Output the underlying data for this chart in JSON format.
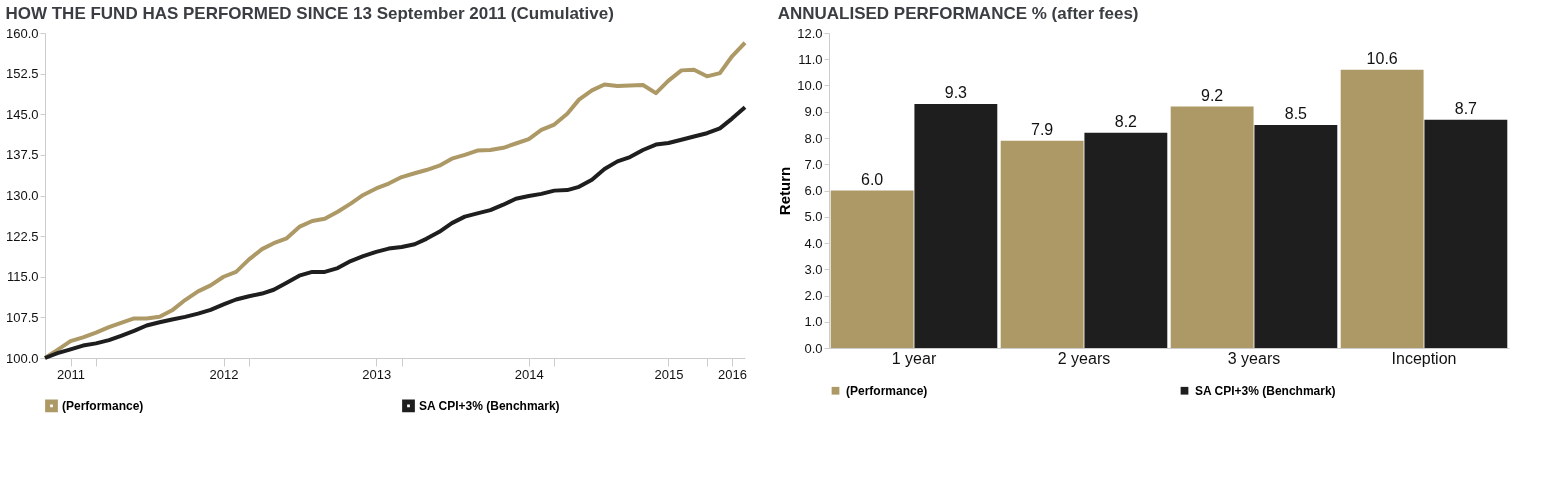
{
  "chart_data": [
    {
      "type": "line",
      "title": "HOW THE FUND HAS PERFORMED SINCE 13 September 2011 (Cumulative)",
      "x": [
        "2011-09",
        "2011-10",
        "2011-11",
        "2011-12",
        "2012-01",
        "2012-02",
        "2012-03",
        "2012-04",
        "2012-05",
        "2012-06",
        "2012-07",
        "2012-08",
        "2012-09",
        "2012-10",
        "2012-11",
        "2012-12",
        "2013-01",
        "2013-02",
        "2013-03",
        "2013-04",
        "2013-05",
        "2013-06",
        "2013-07",
        "2013-08",
        "2013-09",
        "2013-10",
        "2013-11",
        "2013-12",
        "2014-01",
        "2014-02",
        "2014-03",
        "2014-04",
        "2014-05",
        "2014-06",
        "2014-07",
        "2014-08",
        "2014-09",
        "2014-10",
        "2014-11",
        "2014-12",
        "2015-01",
        "2015-02",
        "2015-03",
        "2015-04",
        "2015-05",
        "2015-06",
        "2015-07",
        "2015-08",
        "2015-09",
        "2015-10",
        "2015-11",
        "2015-12",
        "2016-01",
        "2016-02",
        "2016-03",
        "2016-04"
      ],
      "xlim": [
        "2011-09",
        "2016-04"
      ],
      "xticks": [
        {
          "value": "2011-11",
          "label": "2011"
        },
        {
          "value": "2012-01",
          "label": null
        },
        {
          "value": "2012-11",
          "label": "2012"
        },
        {
          "value": "2013-01",
          "label": null
        },
        {
          "value": "2013-11",
          "label": "2013"
        },
        {
          "value": "2014-01",
          "label": null
        },
        {
          "value": "2014-11",
          "label": "2014"
        },
        {
          "value": "2015-01",
          "label": null
        },
        {
          "value": "2015-10",
          "label": "2015"
        },
        {
          "value": "2016-01",
          "label": null
        },
        {
          "value": "2016-03",
          "label": "2016"
        }
      ],
      "ylim": [
        100,
        160
      ],
      "yticks": [
        {
          "value": 100,
          "label": "100.0"
        },
        {
          "value": 107.5,
          "label": "107.5"
        },
        {
          "value": 115,
          "label": "115.0"
        },
        {
          "value": 122.5,
          "label": "122.5"
        },
        {
          "value": 130,
          "label": "130.0"
        },
        {
          "value": 137.5,
          "label": "137.5"
        },
        {
          "value": 145,
          "label": "145.0"
        },
        {
          "value": 152.5,
          "label": "152.5"
        },
        {
          "value": 160,
          "label": "160.0"
        }
      ],
      "grid": false,
      "legend": "bottom",
      "marker": "none",
      "line_style": "solid",
      "series": [
        {
          "name": "(Performance)",
          "color": "#ad9966",
          "values": [
            100.0,
            101.5,
            103.1,
            103.8,
            104.7,
            105.7,
            106.5,
            107.3,
            107.3,
            107.6,
            108.8,
            110.7,
            112.3,
            113.4,
            115.0,
            115.9,
            118.2,
            120.1,
            121.2,
            122.1,
            124.2,
            125.3,
            125.7,
            127.0,
            128.5,
            130.1,
            131.3,
            132.2,
            133.4,
            134.1,
            134.7,
            135.5,
            136.8,
            137.5,
            138.3,
            138.4,
            138.8,
            139.6,
            140.4,
            142.1,
            143.1,
            145.1,
            147.7,
            149.4,
            150.5,
            150.2,
            150.3,
            150.4,
            148.9,
            151.2,
            153.1,
            153.2,
            152.0,
            152.6,
            155.7,
            158.2
          ]
        },
        {
          "name": "SA CPI+3% (Benchmark)",
          "color": "#1e1e1e",
          "values": [
            100.0,
            100.9,
            101.6,
            102.3,
            102.7,
            103.3,
            104.1,
            105.0,
            106.0,
            106.6,
            107.1,
            107.6,
            108.2,
            108.9,
            109.9,
            110.8,
            111.4,
            111.9,
            112.6,
            113.9,
            115.2,
            115.9,
            115.9,
            116.6,
            117.9,
            118.8,
            119.6,
            120.2,
            120.5,
            121.0,
            122.0,
            123.3,
            124.9,
            126.1,
            126.7,
            127.3,
            128.3,
            129.4,
            129.9,
            130.3,
            130.9,
            131.0,
            131.6,
            132.9,
            134.9,
            136.3,
            137.1,
            138.4,
            139.4,
            139.7,
            140.3,
            140.9,
            141.5,
            142.4,
            144.2,
            146.3
          ]
        }
      ]
    },
    {
      "type": "bar",
      "title": "ANNUALISED PERFORMANCE % (after fees)",
      "ylabel": "Return",
      "categories": [
        "1 year",
        "2 years",
        "3 years",
        "Inception"
      ],
      "ylim": [
        0,
        12
      ],
      "yticks": [
        {
          "value": 0,
          "label": "0.0"
        },
        {
          "value": 1,
          "label": "1.0"
        },
        {
          "value": 2,
          "label": "2.0"
        },
        {
          "value": 3,
          "label": "3.0"
        },
        {
          "value": 4,
          "label": "4.0"
        },
        {
          "value": 5,
          "label": "5.0"
        },
        {
          "value": 6,
          "label": "6.0"
        },
        {
          "value": 7,
          "label": "7.0"
        },
        {
          "value": 8,
          "label": "8.0"
        },
        {
          "value": 9,
          "label": "9.0"
        },
        {
          "value": 10,
          "label": "10.0"
        },
        {
          "value": 11,
          "label": "11.0"
        },
        {
          "value": 12,
          "label": "12.0"
        }
      ],
      "grid": false,
      "legend": "bottom",
      "series": [
        {
          "name": "(Performance)",
          "color": "#ad9966",
          "values": [
            6.0,
            7.9,
            9.2,
            10.6
          ],
          "value_labels": [
            "6.0",
            "7.9",
            "9.2",
            "10.6"
          ]
        },
        {
          "name": "SA CPI+3% (Benchmark)",
          "color": "#1e1e1e",
          "values": [
            9.3,
            8.2,
            8.5,
            8.7
          ],
          "value_labels": [
            "9.3",
            "8.2",
            "8.5",
            "8.7"
          ]
        }
      ]
    }
  ]
}
